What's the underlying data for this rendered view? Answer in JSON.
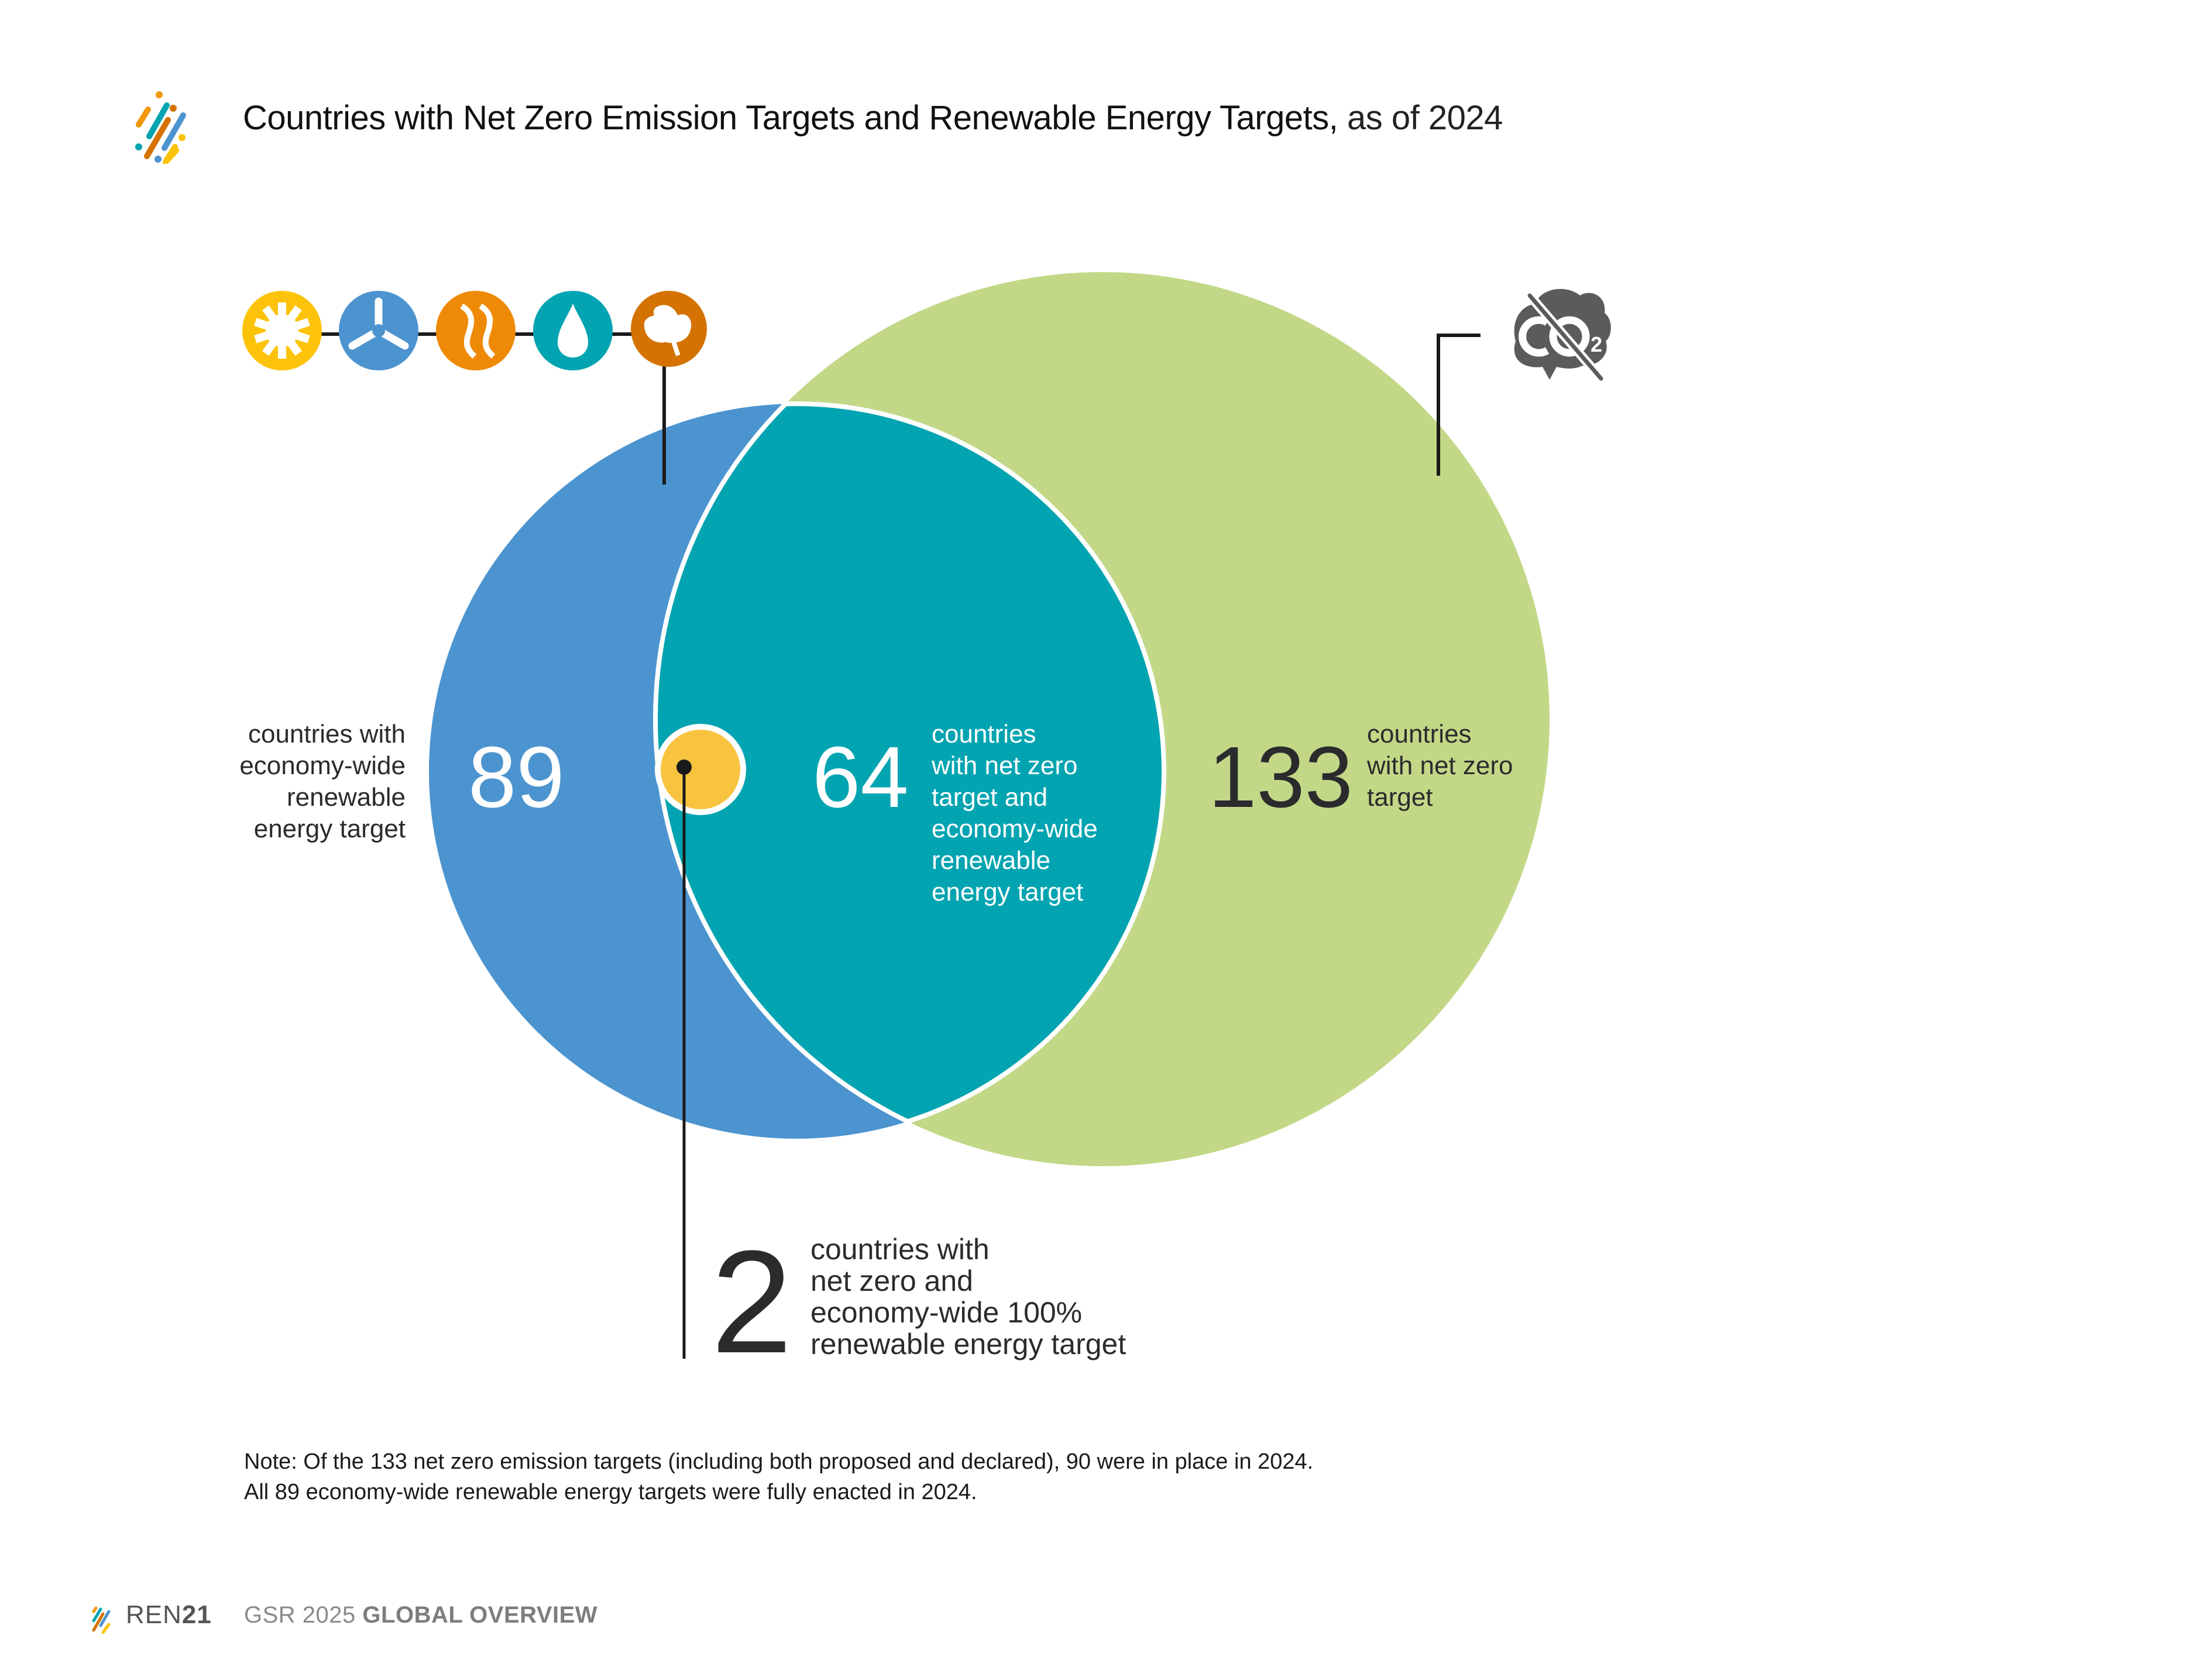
{
  "header": {
    "title_main": "Countries with Net Zero Emission Targets and Renewable Energy Targets,",
    "title_suffix": "as of 2024",
    "logo_icon": "ren21-stripes-logo-icon"
  },
  "colors": {
    "renewable_circle": "#4c94cf",
    "net_zero_circle": "#c2d887",
    "overlap": "#03a4b1",
    "hundred_percent_dot": "#f8c440",
    "text_dark": "#2b2b2d",
    "icon_solar": "#fcc30a",
    "icon_wind": "#4c94cf",
    "icon_geothermal": "#ef8a06",
    "icon_hydro": "#03a4b1",
    "icon_bioenergy": "#d47301",
    "icon_co2": "#5b5b5d"
  },
  "icons": {
    "renewable_sources": [
      "solar-icon",
      "wind-turbine-icon",
      "geothermal-icon",
      "hydro-drop-icon",
      "bioenergy-leaf-icon"
    ],
    "net_zero": "no-co2-cloud-icon"
  },
  "sets": {
    "renewable_only": {
      "value": "89",
      "label_lines": [
        "countries with",
        "economy-wide",
        "renewable",
        "energy target"
      ]
    },
    "overlap": {
      "value": "64",
      "label_lines": [
        "countries",
        "with net zero",
        "target and",
        "economy-wide",
        "renewable",
        "energy target"
      ]
    },
    "net_zero": {
      "value": "133",
      "label_lines": [
        "countries",
        "with net zero",
        "target"
      ]
    },
    "hundred_percent": {
      "value": "2",
      "label_lines": [
        "countries with",
        "net zero and",
        "economy-wide 100%",
        "renewable energy target"
      ]
    }
  },
  "note": {
    "line1": "Note: Of the 133 net zero emission targets (including both proposed and declared), 90 were in place in 2024.",
    "line2": "All 89 economy-wide renewable energy targets were fully enacted in 2024."
  },
  "footer": {
    "brand_prefix": "REN",
    "brand_suffix": "21",
    "report_prefix": "GSR 2025",
    "report_section": "GLOBAL OVERVIEW"
  }
}
